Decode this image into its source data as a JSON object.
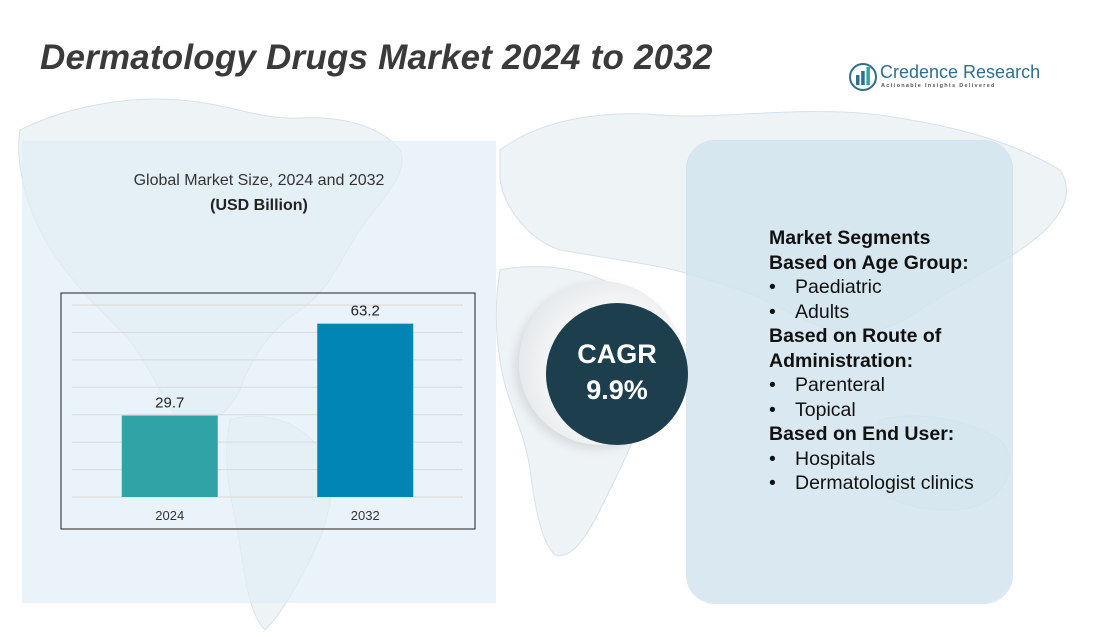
{
  "header": {
    "title": "Dermatology Drugs Market 2024 to 2032"
  },
  "logo": {
    "name": "Credence Research",
    "tagline": "Actionable Insights Delivered",
    "icon": "bar-chart-logo-icon",
    "color": "#2e6f8e"
  },
  "chart": {
    "title": "Global Market Size, 2024 and 2032",
    "unit": "(USD Billion)"
  },
  "chart_data": {
    "type": "bar",
    "title": "Global Market Size, 2024 and 2032",
    "subtitle": "(USD Billion)",
    "categories": [
      "2024",
      "2032"
    ],
    "values": [
      29.7,
      63.2
    ],
    "value_labels": [
      "29.7",
      "63.2"
    ],
    "bar_colors": [
      "#2fa3a6",
      "#0085b4"
    ],
    "xlabel": "",
    "ylabel": "",
    "ylim": [
      0,
      70
    ],
    "grid": true,
    "legend": "none"
  },
  "cagr": {
    "label": "CAGR",
    "value": "9.9%",
    "color": "#1d3f4d"
  },
  "segments": [
    {
      "type": "heading",
      "text": "Market Segments"
    },
    {
      "type": "heading",
      "text": "Based on Age Group:"
    },
    {
      "type": "item",
      "text": "Paediatric"
    },
    {
      "type": "item",
      "text": "Adults"
    },
    {
      "type": "heading",
      "text": "Based on Route of"
    },
    {
      "type": "heading",
      "text": "Administration:"
    },
    {
      "type": "item",
      "text": "Parenteral"
    },
    {
      "type": "item",
      "text": "Topical"
    },
    {
      "type": "heading",
      "text": "Based on End User:"
    },
    {
      "type": "item",
      "text": "Hospitals"
    },
    {
      "type": "item",
      "text": "Dermatologist clinics"
    }
  ],
  "bullet": "•"
}
